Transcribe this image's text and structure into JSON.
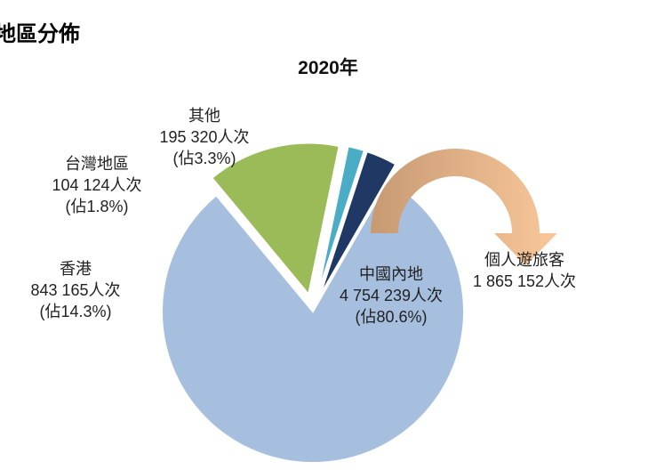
{
  "heading": "地區分佈",
  "chart_data": {
    "type": "pie",
    "title": "2020年",
    "slices": [
      {
        "name": "中國內地",
        "value": 4754239,
        "value_text": "4 754 239人次",
        "share": 80.6,
        "share_text": "80.6%",
        "color": "#a6bfdf",
        "exploded": false
      },
      {
        "name": "香港",
        "value": 843165,
        "value_text": "843 165人次",
        "share": 14.3,
        "share_text": "14.3%",
        "color": "#9bbb59",
        "exploded": true
      },
      {
        "name": "台灣地區",
        "value": 104124,
        "value_text": "104 124人次",
        "share": 1.8,
        "share_text": "1.8%",
        "color": "#4bacc6",
        "exploded": true
      },
      {
        "name": "其他",
        "value": 195320,
        "value_text": "195 320人次",
        "share": 3.3,
        "share_text": "3.3%",
        "color": "#1f3864",
        "exploded": true
      }
    ],
    "pct_prefix": "(佔",
    "pct_suffix": ")",
    "annotation": {
      "name": "個人遊旅客",
      "value": 1865152,
      "value_text": "1 865 152人次",
      "color_from": "#c79a72",
      "color_to": "#f9c79b"
    }
  }
}
